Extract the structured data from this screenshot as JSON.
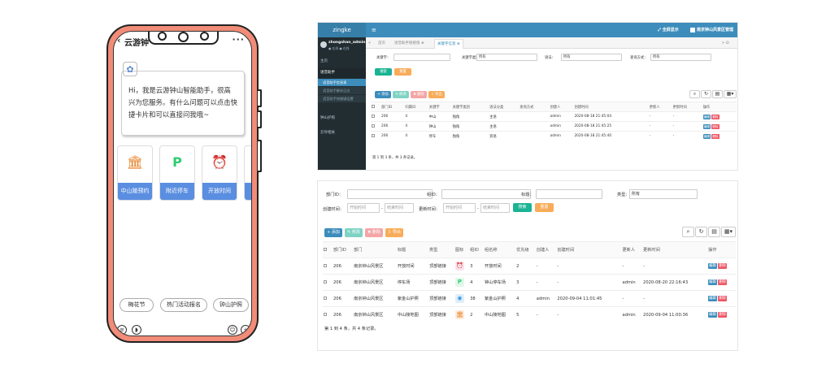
{
  "phone": {
    "title": "云游钟",
    "more": "···",
    "back": "‹",
    "greeting": "Hi，我是云游钟山智能助手，很高兴为您服务。有什么问题可以点击快捷卡片和可以直接问我哦~",
    "cards": [
      {
        "label": "中山陵预约",
        "icon": "🏛",
        "color": "#e67e22"
      },
      {
        "label": "附近停车",
        "icon": "P",
        "color": "#2ecc71"
      },
      {
        "label": "开放时间",
        "icon": "⏰",
        "color": "#e84393"
      },
      {
        "label": "",
        "icon": "",
        "color": "#5a8ee0"
      }
    ],
    "chips": [
      "梅花节",
      "热门活动报名",
      "钟山护照"
    ]
  },
  "admin_top": {
    "brand": "zingke",
    "menu_icon": "≡",
    "fullscreen": "⤢ 全屏显示",
    "top_user": "南京钟山风景区管理",
    "sidebar": {
      "user": "zhongshan_admin",
      "status": "● 在线  ● 在线",
      "items": [
        "主页",
        "语音助手",
        "钟山护照",
        "云导相关"
      ],
      "subitems": [
        "语音助手信息表",
        "语音助手解析日志",
        "语音助手快捷键设置"
      ]
    },
    "tabs": [
      "首页",
      "语音助手链接值 ⊗",
      "关键字信息 ⊗"
    ],
    "tab_nav_left": "«",
    "tab_nav_right": "» ⊙",
    "filters": {
      "keyword_label": "关键字：",
      "keyword_type_label": "关键字类别：",
      "keyword_type_value": "所有",
      "source_label": "语法：",
      "source_value": "所有",
      "query_label": "查询方式：",
      "query_value": "所有",
      "search": "搜索",
      "reset": "重置"
    },
    "toolbar": {
      "add": "+ 添加",
      "edit": "✎ 修改",
      "delete": "✖ 删除",
      "export": "⇩ 导出"
    },
    "columns": [
      "部门ID",
      "归属ID",
      "关键字",
      "关键字类别",
      "语法分类",
      "查询方式",
      "创建人",
      "创建时间",
      "更新人",
      "更新时间",
      "操作"
    ],
    "rows": [
      [
        "206",
        "4",
        "中山",
        "独角",
        "主语",
        "",
        "admin",
        "2020-08-18 21:45:04",
        "-",
        "-"
      ],
      [
        "206",
        "4",
        "钟山",
        "独角",
        "主语",
        "",
        "admin",
        "2020-08-18 21:45:25",
        "-",
        "-"
      ],
      [
        "206",
        "4",
        "停车",
        "独角",
        "宾语",
        "",
        "admin",
        "2020-08-18 21:45:40",
        "-",
        "-"
      ]
    ],
    "op_edit": "编辑",
    "op_delete": "删除",
    "footer": "第 1 到 3 条，共 3 条记录。"
  },
  "admin_bottom": {
    "filters": {
      "dept_label": "部门ID：",
      "group_label": "组ID：",
      "title_label": "标题：",
      "type_label": "类型：",
      "type_value": "所有",
      "created_label": "创建时间：",
      "updated_label": "更新时间：",
      "start_ph": "开始时间",
      "end_ph": "结束时间",
      "search": "搜索",
      "reset": "重置"
    },
    "toolbar": {
      "add": "+ 添加",
      "edit": "✎ 修改",
      "delete": "✖ 删除",
      "export": "⇩ 导出"
    },
    "columns": [
      "部门ID",
      "部门",
      "标题",
      "类型",
      "图标",
      "组ID",
      "组名称",
      "优先级",
      "创建人",
      "创建时间",
      "更新人",
      "更新时间",
      "操作"
    ],
    "rows": [
      {
        "cells": [
          "206",
          "南京钟山风景区",
          "开放时间",
          "顶部链接",
          "",
          "3",
          "开放时间",
          "2",
          "-",
          "-",
          "-",
          "-"
        ],
        "icon": "⏰",
        "icon_color": "#e84393"
      },
      {
        "cells": [
          "206",
          "南京钟山风景区",
          "停车场",
          "顶部链接",
          "",
          "4",
          "钟山停车场",
          "3",
          "-",
          "-",
          "admin",
          "2020-08-20 22:16:43"
        ],
        "icon": "P",
        "icon_color": "#2ecc71"
      },
      {
        "cells": [
          "206",
          "南京钟山风景区",
          "紫金山护照",
          "顶部链接",
          "",
          "38",
          "紫金山护照",
          "4",
          "admin",
          "2020-09-04 11:01:45",
          "-",
          "-"
        ],
        "icon": "◉",
        "icon_color": "#3498db"
      },
      {
        "cells": [
          "206",
          "南京钟山风景区",
          "中山陵地图",
          "顶部链接",
          "",
          "2",
          "中山陵地图",
          "5",
          "-",
          "-",
          "admin",
          "2020-09-04 11:00:36"
        ],
        "icon": "🏛",
        "icon_color": "#e67e22"
      }
    ],
    "op_edit": "编辑",
    "op_delete": "删除",
    "footer": "第 1 到 4 条，共 4 条记录。"
  }
}
